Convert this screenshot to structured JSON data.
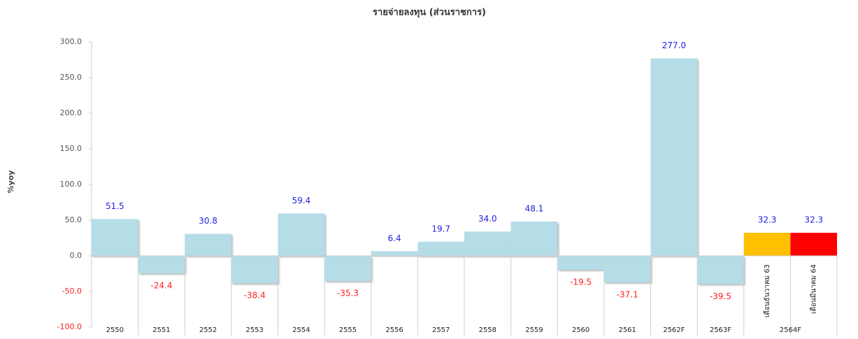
{
  "chart_data": {
    "type": "bar",
    "title": "รายจ่ายลงทุน (ส่วนราชการ)",
    "y_label": "%yoy",
    "categories": [
      "2550",
      "2551",
      "2552",
      "2553",
      "2554",
      "2555",
      "2556",
      "2557",
      "2558",
      "2559",
      "2560",
      "2561",
      "2562F",
      "2563F",
      "เดือนธันวาคม 63",
      "เดือนมีนาคม 64"
    ],
    "group_label": "2564F",
    "values": [
      51.5,
      -24.4,
      30.8,
      -38.4,
      59.4,
      -35.3,
      6.4,
      19.7,
      34.0,
      48.1,
      -19.5,
      -37.1,
      277.0,
      -39.5,
      32.3,
      32.3
    ],
    "value_labels": [
      "51.5",
      "-24.4",
      "30.8",
      "-38.4",
      "59.4",
      "-35.3",
      "6.4",
      "19.7",
      "34.0",
      "48.1",
      "-19.5",
      "-37.1",
      "277.0",
      "-39.5",
      "32.3",
      "32.3"
    ],
    "colors": [
      "#b4dde8",
      "#b4dde8",
      "#b4dde8",
      "#b4dde8",
      "#b4dde8",
      "#b4dde8",
      "#b4dde8",
      "#b4dde8",
      "#b4dde8",
      "#b4dde8",
      "#b4dde8",
      "#b4dde8",
      "#b4dde8",
      "#b4dde8",
      "#ffc000",
      "#ff0000"
    ],
    "positive_label_color": "#1f1fe0",
    "negative_label_color": "#ff2020",
    "ylim": [
      -100,
      300
    ],
    "yticks": [
      {
        "value": -100,
        "label": "-100.0"
      },
      {
        "value": -50,
        "label": "-50.0"
      },
      {
        "value": 0,
        "label": "0.0"
      },
      {
        "value": 50,
        "label": "50.0"
      },
      {
        "value": 100,
        "label": "100.0"
      },
      {
        "value": 150,
        "label": "150.0"
      },
      {
        "value": 200,
        "label": "200.0"
      },
      {
        "value": 250,
        "label": "250.0"
      },
      {
        "value": 300,
        "label": "300.0"
      }
    ],
    "grid": false
  }
}
